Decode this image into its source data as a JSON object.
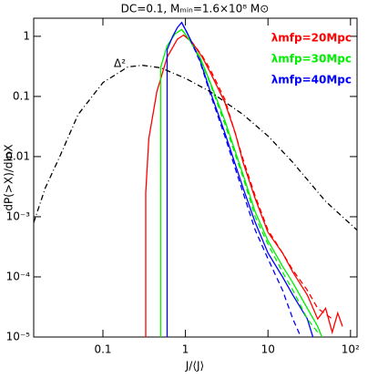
{
  "chart_data": {
    "type": "line",
    "title": "DC=0.1, Mₘᵢₙ=1.6×10⁸ M⊙",
    "x_label": "J/⟨J⟩",
    "y_label": "dP(>X)/dlnX",
    "annotation": "Δ²",
    "xscale": "log",
    "yscale": "log",
    "xlim": [
      0.0145,
      120
    ],
    "ylim": [
      1e-05,
      2
    ],
    "xticks": [
      0.1,
      1,
      10,
      {
        "value": 100,
        "label": "10²"
      }
    ],
    "yticks": [
      {
        "value": 1e-05,
        "label": "10⁻⁵"
      },
      {
        "value": 0.0001,
        "label": "10⁻⁴"
      },
      {
        "value": 0.001,
        "label": "10⁻³"
      },
      0.01,
      0.1,
      1
    ],
    "legend": "upper right",
    "series": [
      {
        "name": "λmfp=20Mpc",
        "color": "#ff0000",
        "dash": "solid",
        "x": [
          0.33,
          0.33,
          0.36,
          0.45,
          0.6,
          0.8,
          0.95,
          1.2,
          1.6,
          2,
          3,
          4,
          5,
          7,
          10,
          15,
          20,
          30,
          40,
          50,
          60,
          70,
          80
        ],
        "values": [
          1e-05,
          0.0025,
          0.02,
          0.12,
          0.45,
          0.9,
          1.05,
          0.8,
          0.45,
          0.25,
          0.08,
          0.025,
          0.008,
          0.002,
          0.00055,
          0.00025,
          0.00012,
          5e-05,
          2e-05,
          3e-05,
          1.2e-05,
          2.5e-05,
          1.5e-05
        ]
      },
      {
        "name": "λmfp=30Mpc",
        "color": "#00ee00",
        "dash": "solid",
        "x": [
          0.5,
          0.5,
          0.6,
          0.75,
          0.9,
          1.1,
          1.5,
          2,
          3,
          5,
          7,
          10,
          15,
          20,
          30,
          40,
          45
        ],
        "values": [
          1e-05,
          0.3,
          0.7,
          1.1,
          1.3,
          0.9,
          0.45,
          0.17,
          0.04,
          0.005,
          0.0012,
          0.0004,
          0.00015,
          8e-05,
          3e-05,
          1.5e-05,
          1e-05
        ]
      },
      {
        "name": "λmfp=40Mpc",
        "color": "#0000ff",
        "dash": "solid",
        "x": [
          0.6,
          0.6,
          0.7,
          0.8,
          0.9,
          1.1,
          1.5,
          2,
          3,
          5,
          7,
          10,
          15,
          20,
          30,
          35
        ],
        "values": [
          1e-05,
          0.6,
          1.0,
          1.4,
          1.7,
          1.0,
          0.4,
          0.12,
          0.025,
          0.003,
          0.0008,
          0.00025,
          0.0001,
          5e-05,
          2e-05,
          1e-05
        ]
      },
      {
        "color": "#ff0000",
        "dash": "dashed",
        "x": [
          0.95,
          1.2,
          1.6,
          2,
          3,
          5,
          7,
          10,
          15,
          20,
          30,
          40,
          60
        ],
        "values": [
          1.05,
          0.8,
          0.47,
          0.28,
          0.09,
          0.009,
          0.0022,
          0.0006,
          0.00025,
          0.00013,
          6e-05,
          3e-05,
          2e-05
        ]
      },
      {
        "color": "#00ee00",
        "dash": "dashed",
        "x": [
          0.9,
          1.1,
          1.5,
          2,
          3,
          5,
          7,
          10,
          15,
          20,
          30,
          40
        ],
        "values": [
          1.3,
          0.9,
          0.43,
          0.16,
          0.035,
          0.0045,
          0.001,
          0.00035,
          0.00012,
          6e-05,
          2e-05,
          1.2e-05
        ]
      },
      {
        "color": "#0000ff",
        "dash": "dashed",
        "x": [
          0.9,
          1.1,
          1.5,
          2,
          3,
          5,
          7,
          10,
          15,
          20,
          25
        ],
        "values": [
          1.7,
          1.0,
          0.38,
          0.11,
          0.022,
          0.0025,
          0.0006,
          0.0002,
          6e-05,
          2e-05,
          1e-05
        ]
      },
      {
        "color": "#000000",
        "dash": "dashdot",
        "x": [
          0.0145,
          0.02,
          0.03,
          0.05,
          0.1,
          0.2,
          0.3,
          0.5,
          1,
          2,
          5,
          10,
          20,
          50,
          120
        ],
        "values": [
          0.0008,
          0.003,
          0.01,
          0.05,
          0.17,
          0.31,
          0.33,
          0.3,
          0.2,
          0.12,
          0.05,
          0.022,
          0.008,
          0.0018,
          0.0006
        ]
      }
    ]
  }
}
